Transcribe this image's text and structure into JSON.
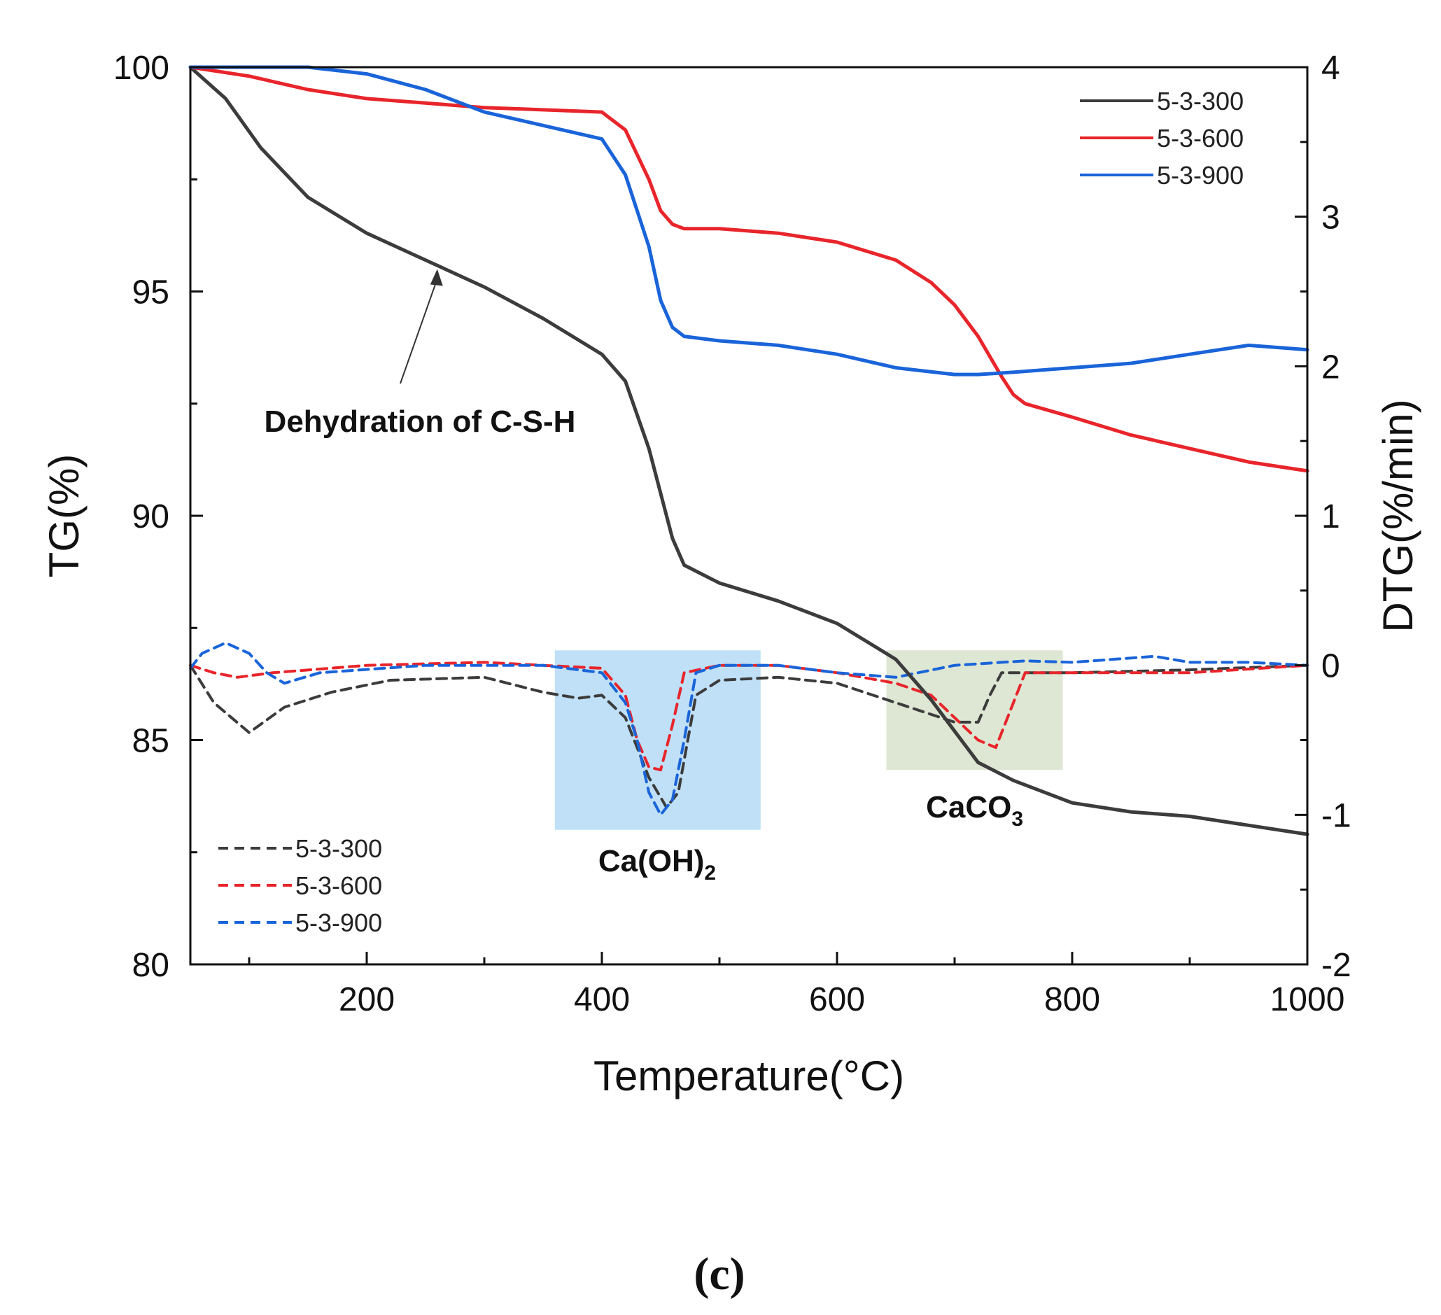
{
  "chart_data": {
    "type": "line",
    "panel_label": "(c)",
    "xlabel": "Temperature(°C)",
    "ylabel_left": "TG(%)",
    "ylabel_right": "DTG(%/min)",
    "xlim": [
      50,
      1000
    ],
    "ylim_left": [
      80,
      100
    ],
    "ylim_right": [
      -2,
      4
    ],
    "x_ticks": [
      200,
      400,
      600,
      800,
      1000
    ],
    "y_ticks_left": [
      80,
      85,
      90,
      95,
      100
    ],
    "y_ticks_right": [
      -2,
      -1,
      0,
      1,
      2,
      3,
      4
    ],
    "tg_series": [
      {
        "name": "5-3-300",
        "color": "#3c3c3c",
        "axis": "TG",
        "style": "solid",
        "x": [
          50,
          80,
          110,
          150,
          200,
          250,
          300,
          350,
          400,
          420,
          440,
          460,
          470,
          500,
          550,
          600,
          650,
          680,
          700,
          720,
          750,
          800,
          850,
          900,
          950,
          1000
        ],
        "y": [
          100,
          99.3,
          98.2,
          97.1,
          96.3,
          95.7,
          95.1,
          94.4,
          93.6,
          93.0,
          91.5,
          89.5,
          88.9,
          88.5,
          88.1,
          87.6,
          86.8,
          85.9,
          85.2,
          84.5,
          84.1,
          83.6,
          83.4,
          83.3,
          83.1,
          82.9
        ]
      },
      {
        "name": "5-3-600",
        "color": "#e8252b",
        "axis": "TG",
        "style": "solid",
        "x": [
          50,
          100,
          150,
          200,
          250,
          300,
          350,
          400,
          420,
          440,
          450,
          460,
          470,
          500,
          550,
          600,
          650,
          680,
          700,
          720,
          740,
          750,
          760,
          800,
          850,
          900,
          950,
          1000
        ],
        "y": [
          100,
          99.8,
          99.5,
          99.3,
          99.2,
          99.1,
          99.05,
          99.0,
          98.6,
          97.5,
          96.8,
          96.5,
          96.4,
          96.4,
          96.3,
          96.1,
          95.7,
          95.2,
          94.7,
          94.0,
          93.1,
          92.7,
          92.5,
          92.2,
          91.8,
          91.5,
          91.2,
          91.0
        ]
      },
      {
        "name": "5-3-900",
        "color": "#1a64d9",
        "axis": "TG",
        "style": "solid",
        "x": [
          50,
          150,
          200,
          250,
          300,
          350,
          400,
          420,
          440,
          450,
          460,
          470,
          500,
          550,
          600,
          650,
          700,
          720,
          750,
          800,
          850,
          900,
          950,
          1000
        ],
        "y": [
          100,
          100,
          99.85,
          99.5,
          99.0,
          98.7,
          98.4,
          97.6,
          96.0,
          94.8,
          94.2,
          94.0,
          93.9,
          93.8,
          93.6,
          93.3,
          93.15,
          93.15,
          93.2,
          93.3,
          93.4,
          93.6,
          93.8,
          93.7
        ]
      }
    ],
    "dtg_series": [
      {
        "name": "5-3-300",
        "color": "#3c3c3c",
        "axis": "DTG",
        "style": "dashed",
        "x": [
          50,
          70,
          100,
          130,
          170,
          220,
          300,
          350,
          380,
          400,
          420,
          440,
          455,
          465,
          480,
          500,
          550,
          600,
          650,
          700,
          720,
          730,
          740,
          760,
          800,
          900,
          1000
        ],
        "y": [
          0,
          -0.25,
          -0.45,
          -0.28,
          -0.18,
          -0.1,
          -0.08,
          -0.18,
          -0.22,
          -0.2,
          -0.35,
          -0.75,
          -0.95,
          -0.85,
          -0.2,
          -0.1,
          -0.08,
          -0.12,
          -0.25,
          -0.38,
          -0.38,
          -0.2,
          -0.05,
          -0.05,
          -0.05,
          -0.03,
          0
        ]
      },
      {
        "name": "5-3-600",
        "color": "#e8252b",
        "axis": "DTG",
        "style": "dashed",
        "x": [
          50,
          70,
          90,
          120,
          200,
          300,
          350,
          400,
          420,
          430,
          440,
          450,
          460,
          470,
          500,
          550,
          600,
          650,
          680,
          700,
          720,
          735,
          745,
          760,
          800,
          900,
          1000
        ],
        "y": [
          0,
          -0.05,
          -0.08,
          -0.05,
          0,
          0.02,
          0,
          -0.02,
          -0.2,
          -0.5,
          -0.68,
          -0.7,
          -0.4,
          -0.05,
          0,
          0,
          -0.05,
          -0.12,
          -0.2,
          -0.35,
          -0.5,
          -0.55,
          -0.35,
          -0.05,
          -0.05,
          -0.05,
          0
        ]
      },
      {
        "name": "5-3-900",
        "color": "#1a64d9",
        "axis": "DTG",
        "style": "dashed",
        "x": [
          50,
          60,
          80,
          100,
          115,
          130,
          160,
          250,
          350,
          400,
          420,
          430,
          440,
          450,
          460,
          470,
          480,
          500,
          550,
          600,
          650,
          700,
          760,
          800,
          870,
          900,
          950,
          1000
        ],
        "y": [
          -0.02,
          0.08,
          0.15,
          0.08,
          -0.05,
          -0.12,
          -0.05,
          0,
          0,
          -0.05,
          -0.25,
          -0.5,
          -0.85,
          -1.0,
          -0.9,
          -0.5,
          -0.05,
          0,
          0,
          -0.05,
          -0.08,
          0,
          0.03,
          0.02,
          0.06,
          0.02,
          0.02,
          0
        ]
      }
    ],
    "legend_tg": {
      "position": "top-right",
      "entries": [
        "5-3-300",
        "5-3-600",
        "5-3-900"
      ]
    },
    "legend_dtg": {
      "position": "bottom-left",
      "entries": [
        "5-3-300",
        "5-3-600",
        "5-3-900"
      ]
    },
    "annotations": [
      {
        "text": "Dehydration of C-S-H",
        "points_to": {
          "x": 260,
          "tg": 95.5
        }
      },
      {
        "text_base": "Ca(OH)",
        "subscript": "2",
        "highlight_x_range": [
          360,
          535
        ],
        "highlight_dtg_range": [
          -1.1,
          0.1
        ],
        "color": "#bfe0f7"
      },
      {
        "text_base": "CaCO",
        "subscript": "3",
        "highlight_x_range": [
          642,
          792
        ],
        "highlight_dtg_range": [
          -0.7,
          0.1
        ],
        "color": "#dde7d3"
      }
    ]
  }
}
